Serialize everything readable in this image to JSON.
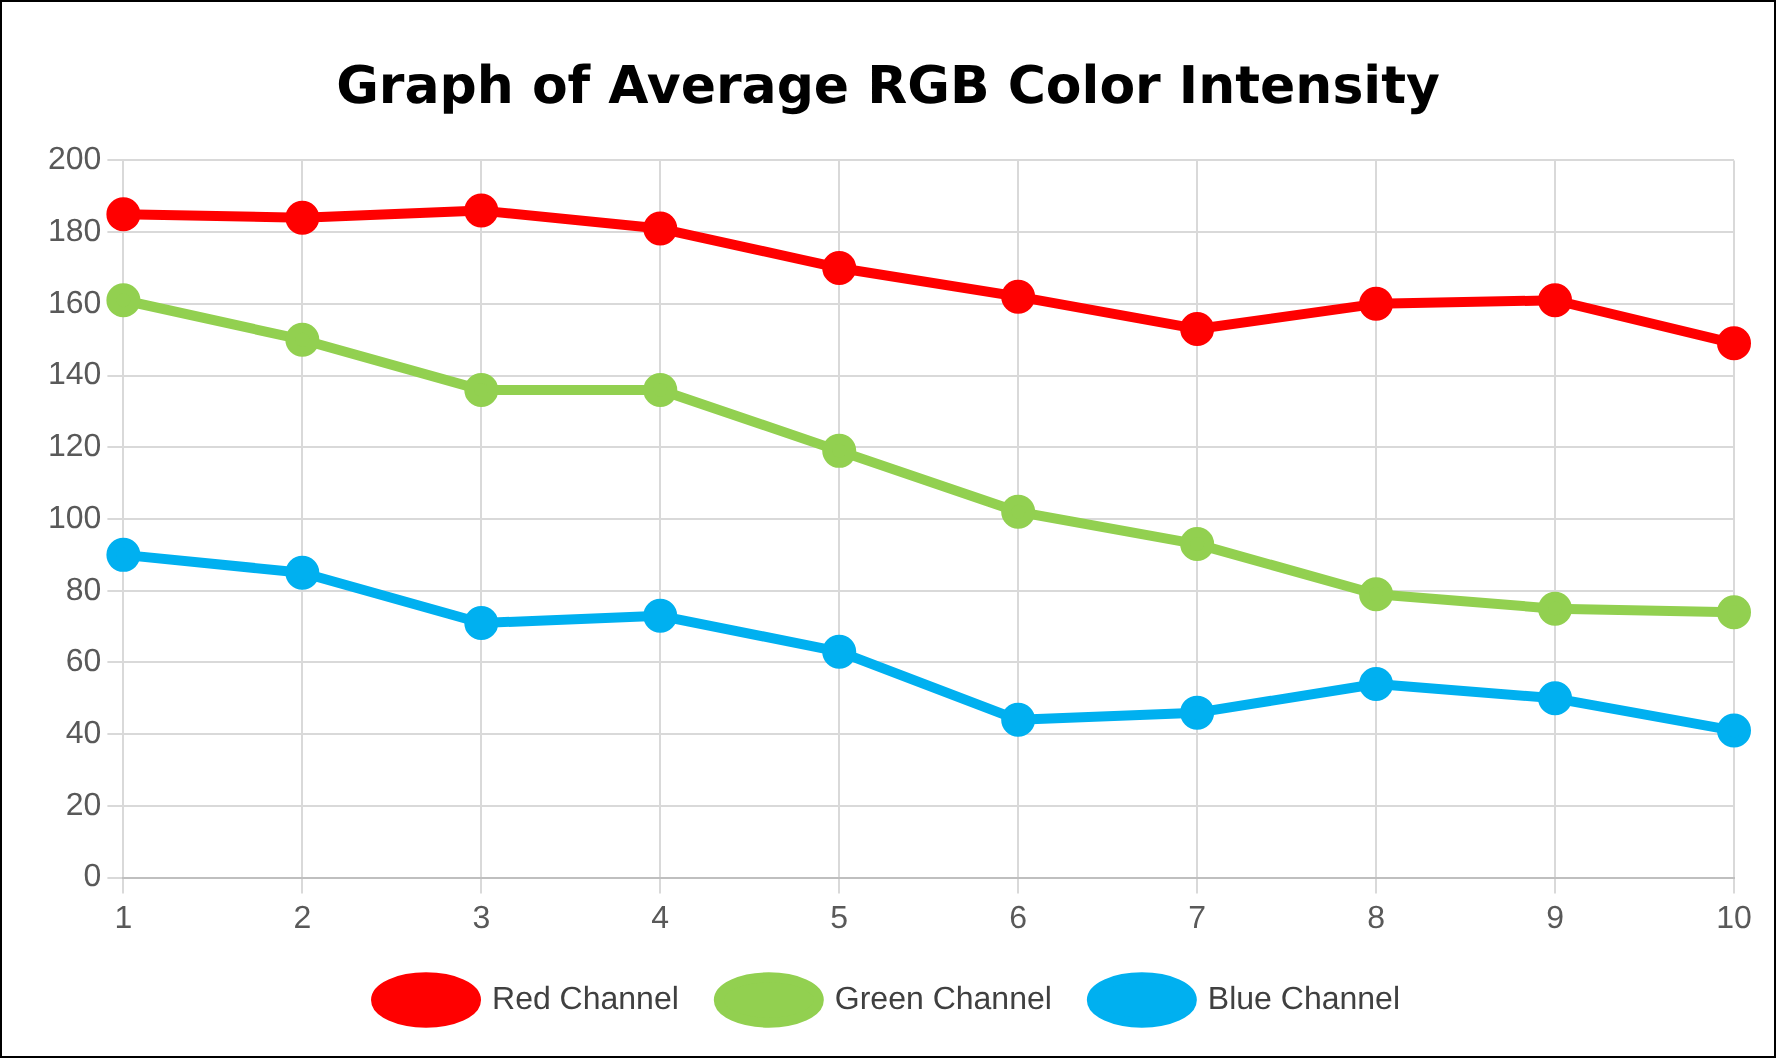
{
  "chart_data": {
    "type": "line",
    "title": "Graph of Average RGB Color Intensity",
    "categories": [
      "1",
      "2",
      "3",
      "4",
      "5",
      "6",
      "7",
      "8",
      "9",
      "10"
    ],
    "series": [
      {
        "name": "Red Channel",
        "color": "#ff0000",
        "values": [
          185,
          184,
          186,
          181,
          170,
          162,
          153,
          160,
          161,
          149
        ]
      },
      {
        "name": "Green Channel",
        "color": "#92d050",
        "values": [
          161,
          150,
          136,
          136,
          119,
          102,
          93,
          79,
          75,
          74
        ]
      },
      {
        "name": "Blue Channel",
        "color": "#00b0f0",
        "values": [
          90,
          85,
          71,
          73,
          63,
          44,
          46,
          54,
          50,
          41
        ]
      }
    ],
    "ylim": [
      0,
      200
    ],
    "yticks": [
      0,
      20,
      40,
      60,
      80,
      100,
      120,
      140,
      160,
      180,
      200
    ],
    "grid": true,
    "legend": "bottom",
    "marker": "circle",
    "line_style": "solid"
  }
}
